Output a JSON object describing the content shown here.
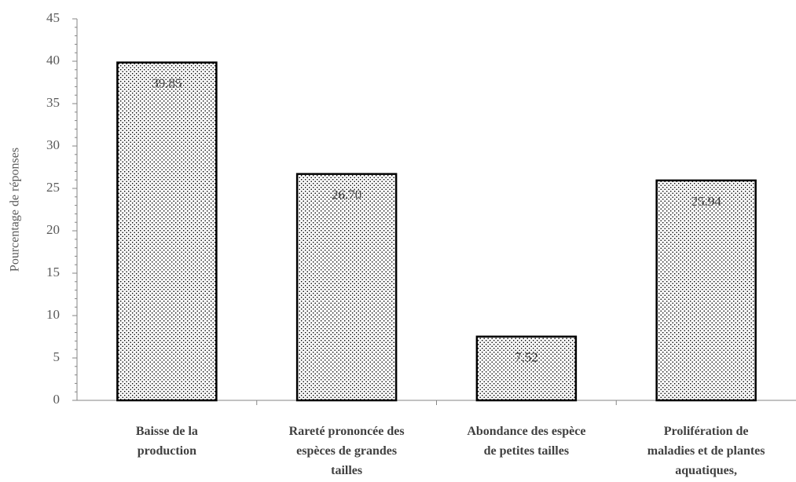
{
  "chart_data": {
    "type": "bar",
    "y_label": "Pourcentage de réponses",
    "categories": [
      "Baisse de la\nproduction",
      "Rareté prononcée des\nespèces de grandes\ntailles",
      "Abondance des espèce\nde petites tailles",
      "Prolifération de\nmaladies et de plantes\naquatiques,"
    ],
    "values": [
      39.85,
      26.7,
      7.52,
      25.94
    ],
    "value_labels": [
      "39.85",
      "26.70",
      "7.52",
      "25.94"
    ],
    "color": "#000000",
    "ylim": [
      0,
      45
    ],
    "yticks": [
      0,
      5,
      10,
      15,
      20,
      25,
      30,
      35,
      40,
      45
    ],
    "grid": false
  }
}
